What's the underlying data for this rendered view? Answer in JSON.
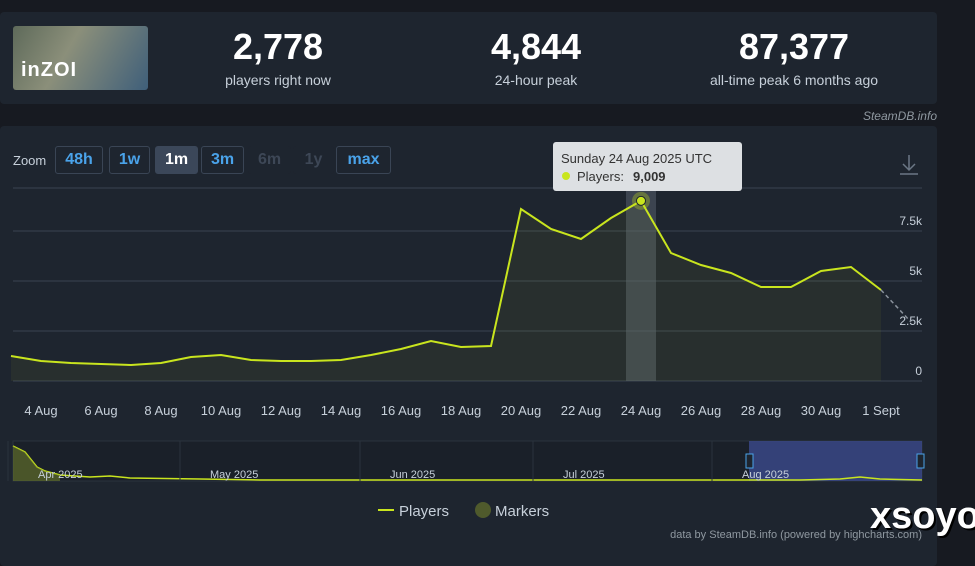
{
  "header": {
    "game_logo": "inZOI",
    "stats": [
      {
        "value": "2,778",
        "label": "players right now"
      },
      {
        "value": "4,844",
        "label": "24-hour peak"
      },
      {
        "value": "87,377",
        "label": "all-time peak 6 months ago"
      }
    ],
    "source": "SteamDB.info"
  },
  "zoom": {
    "label": "Zoom",
    "buttons": [
      "48h",
      "1w",
      "1m",
      "3m",
      "6m",
      "1y",
      "max"
    ]
  },
  "chart_data": {
    "type": "line",
    "categories": [
      null,
      "4 Aug",
      null,
      "6 Aug",
      null,
      "8 Aug",
      null,
      "10 Aug",
      null,
      "12 Aug",
      null,
      "14 Aug",
      null,
      "16 Aug",
      null,
      "18 Aug",
      null,
      "20 Aug",
      null,
      "22 Aug",
      null,
      "24 Aug",
      null,
      "26 Aug",
      null,
      "28 Aug",
      null,
      "30 Aug",
      null,
      "1 Sept",
      null
    ],
    "series": [
      {
        "name": "Players",
        "color": "#c9e51e",
        "values": [
          1250,
          1000,
          900,
          850,
          800,
          900,
          1200,
          1300,
          1050,
          1000,
          1000,
          1050,
          1300,
          1600,
          2000,
          1700,
          1750,
          8600,
          7600,
          7100,
          8150,
          9009,
          6400,
          5800,
          5400,
          4700,
          4700,
          5500,
          5700,
          4550,
          2950
        ]
      }
    ],
    "markers_legend": "Markers",
    "dashed_last_segment": true,
    "ylim": [
      0,
      9650
    ],
    "yticks": [
      0,
      {
        "value": 2500,
        "label": "2.5k"
      },
      {
        "value": 5000,
        "label": "5k"
      },
      {
        "value": 7500,
        "label": "7.5k"
      }
    ],
    "grid": true,
    "tooltip": {
      "title": "Sunday 24 Aug 2025 UTC",
      "label": "Players:",
      "value_label": "9,009"
    },
    "navigator": [
      "Apr 2025",
      "May 2025",
      "Jun 2025",
      "Jul 2025",
      "Aug 2025"
    ],
    "credits": "data by SteamDB.info (powered by highcharts.com)"
  },
  "watermark": "xsoyo"
}
